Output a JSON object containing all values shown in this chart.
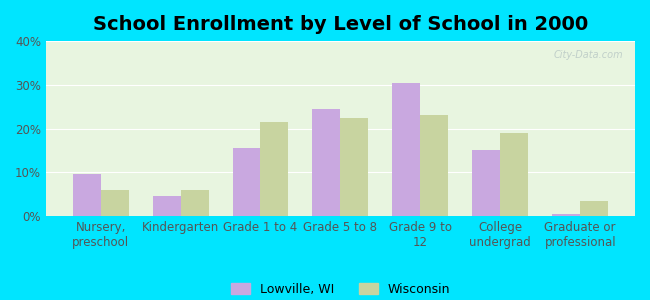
{
  "title": "School Enrollment by Level of School in 2000",
  "categories": [
    "Nursery,\npreschool",
    "Kindergarten",
    "Grade 1 to 4",
    "Grade 5 to 8",
    "Grade 9 to\n12",
    "College\nundergrad",
    "Graduate or\nprofessional"
  ],
  "lowville": [
    9.5,
    4.5,
    15.5,
    24.5,
    30.5,
    15.0,
    0.5
  ],
  "wisconsin": [
    6.0,
    6.0,
    21.5,
    22.5,
    23.0,
    19.0,
    3.5
  ],
  "lowville_color": "#c9a8e0",
  "wisconsin_color": "#c8d4a0",
  "background_outer": "#00e5ff",
  "background_inner": "#e8f5e0",
  "ylim": [
    0,
    40
  ],
  "yticks": [
    0,
    10,
    20,
    30,
    40
  ],
  "legend_labels": [
    "Lowville, WI",
    "Wisconsin"
  ],
  "bar_width": 0.35,
  "title_fontsize": 14,
  "axis_fontsize": 8.5,
  "watermark": "City-Data.com"
}
